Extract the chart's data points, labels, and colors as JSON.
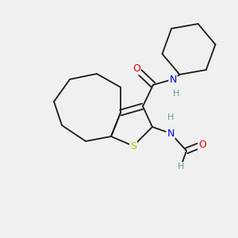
{
  "background_color": "#f0f0f0",
  "bond_color": "#1a1a1a",
  "bond_width": 1.3,
  "atom_colors": {
    "N": "#0000ee",
    "O": "#ee0000",
    "S": "#bbbb00",
    "H": "#6a9a9a",
    "C": "#1a1a1a"
  },
  "figsize": [
    3.0,
    3.0
  ],
  "dpi": 100
}
